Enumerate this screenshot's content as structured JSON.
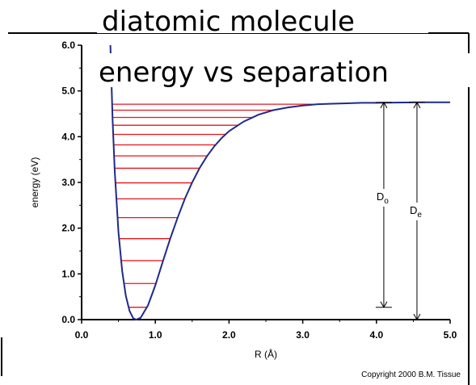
{
  "chart_data": {
    "type": "line",
    "title": [
      "diatomic molecule",
      "energy vs separation"
    ],
    "xlabel": "R (Å)",
    "ylabel": "energy (eV)",
    "xlim": [
      0.0,
      5.0
    ],
    "ylim": [
      0.0,
      6.0
    ],
    "x_ticks": [
      "0.0",
      "1.0",
      "2.0",
      "3.0",
      "4.0",
      "5.0"
    ],
    "y_ticks": [
      "0.0",
      "1.0",
      "2.0",
      "3.0",
      "4.0",
      "5.0",
      "6.0"
    ],
    "potential_curve": {
      "x": [
        0.39,
        0.42,
        0.45,
        0.5,
        0.55,
        0.6,
        0.65,
        0.7,
        0.74,
        0.8,
        0.9,
        1.0,
        1.1,
        1.2,
        1.3,
        1.4,
        1.5,
        1.6,
        1.7,
        1.8,
        1.9,
        2.0,
        2.2,
        2.4,
        2.6,
        2.8,
        3.0,
        3.2,
        3.4,
        3.6,
        3.8,
        4.0,
        4.5,
        5.0
      ],
      "y": [
        6.0,
        4.38,
        3.24,
        1.91,
        1.06,
        0.52,
        0.19,
        0.03,
        0.0,
        0.04,
        0.31,
        0.75,
        1.26,
        1.76,
        2.22,
        2.64,
        3.0,
        3.31,
        3.57,
        3.79,
        3.97,
        4.12,
        4.33,
        4.48,
        4.58,
        4.64,
        4.68,
        4.71,
        4.72,
        4.73,
        4.74,
        4.74,
        4.75,
        4.75
      ]
    },
    "vibrational_levels_eV": [
      0.27,
      0.79,
      1.29,
      1.77,
      2.23,
      2.64,
      2.99,
      3.31,
      3.58,
      3.82,
      4.05,
      4.25,
      4.42,
      4.58,
      4.71
    ],
    "annotations": [
      {
        "label": "D",
        "subscript": "o",
        "x": 4.1,
        "y_from": 0.27,
        "y_to": 4.75
      },
      {
        "label": "D",
        "subscript": "e",
        "x": 4.55,
        "y_from": 0.0,
        "y_to": 4.75
      }
    ],
    "footer": "Copyright 2000 B.M. Tissue",
    "colors": {
      "curve": "#1f2a8a",
      "levels": "#e8141a",
      "axes": "#000000"
    },
    "grid": false
  }
}
